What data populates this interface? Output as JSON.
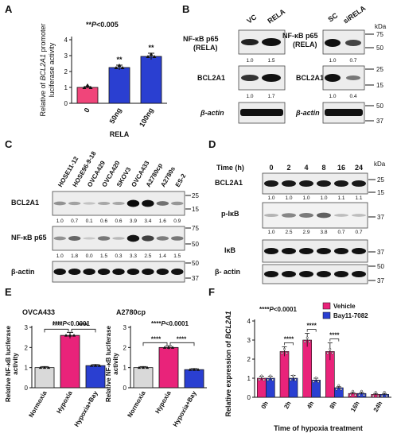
{
  "panels": {
    "A": {
      "label": "A",
      "ylabel_pre": "Relative of ",
      "ylabel_gene": "BCL2A1",
      "ylabel_post": " promoter",
      "ylabel2": "luciferase activity",
      "sig_prefix": "**",
      "sig_p": "P",
      "sig_rest": "<0.005",
      "xlabel": "RELA",
      "chart_data": {
        "type": "bar",
        "categories": [
          "0",
          "50ng",
          "100ng"
        ],
        "values": [
          1.0,
          2.25,
          2.95
        ],
        "errors": [
          0.05,
          0.15,
          0.2
        ],
        "ylim": [
          0,
          4
        ],
        "yticks": [
          "0",
          "1",
          "2",
          "3",
          "4"
        ],
        "stars": [
          "",
          "**",
          "**"
        ],
        "colors": [
          "#f0457a",
          "#2a3fd1",
          "#2a3fd1"
        ]
      }
    },
    "B": {
      "label": "B",
      "left": {
        "lanes": [
          "VC",
          "RELA"
        ],
        "rows": [
          {
            "name1": "NF-κB p65",
            "name2": "(RELA)",
            "values": [
              "1.0",
              "1.5"
            ]
          },
          {
            "name1": "BCL2A1",
            "name2": "",
            "values": [
              "1.0",
              "1.7"
            ]
          },
          {
            "name1": "β-actin",
            "name2": "",
            "values": []
          }
        ]
      },
      "right": {
        "lanes": [
          "SC",
          "siRELA"
        ],
        "rows": [
          {
            "name1": "NF-κB p65",
            "name2": "(RELA)",
            "values": [
              "1.0",
              "0.7"
            ],
            "kda": [
              "75",
              "50"
            ]
          },
          {
            "name1": "BCL2A1",
            "name2": "",
            "values": [
              "1.0",
              "0.4"
            ],
            "kda": [
              "25",
              "15"
            ]
          },
          {
            "name1": "β-actin",
            "name2": "",
            "values": [],
            "kda": [
              "50",
              "37"
            ]
          }
        ]
      },
      "kda": "kDa"
    },
    "C": {
      "label": "C",
      "lanes": [
        "HOSE11-12",
        "HOSE96-9-18",
        "OVCA429",
        "OVCA420",
        "SKOV3",
        "OVCA433",
        "A2780cp",
        "A2780s",
        "ES-2"
      ],
      "rows": [
        {
          "name": "BCL2A1",
          "values": [
            "1.0",
            "0.7",
            "0.1",
            "0.6",
            "0.6",
            "3.9",
            "3.4",
            "1.6",
            "0.9"
          ],
          "kda": [
            "25",
            "15"
          ]
        },
        {
          "name": "NF-κB p65",
          "values": [
            "1.0",
            "1.8",
            "0.0",
            "1.5",
            "0.3",
            "3.3",
            "2.5",
            "1.4",
            "1.5"
          ],
          "kda": [
            "75",
            "50"
          ]
        },
        {
          "name": "β-actin",
          "values": [],
          "kda": [
            "50",
            "37"
          ]
        }
      ]
    },
    "D": {
      "label": "D",
      "time_label": "Time (h)",
      "times": [
        "0",
        "2",
        "4",
        "8",
        "16",
        "24"
      ],
      "kda": "kDa",
      "rows": [
        {
          "name": "BCL2A1",
          "values": [
            "1.0",
            "1.0",
            "1.0",
            "1.0",
            "1.1",
            "1.1"
          ],
          "kda": [
            "25",
            "15"
          ]
        },
        {
          "name": "p-IκB",
          "values": [
            "1.0",
            "2.5",
            "2.9",
            "3.8",
            "0.7",
            "0.7"
          ],
          "kda": [
            "37"
          ]
        },
        {
          "name": "IκB",
          "values": [],
          "kda": [
            "37"
          ]
        },
        {
          "name": "β- actin",
          "values": [],
          "kda": [
            "50",
            "37"
          ]
        }
      ]
    },
    "E": {
      "label": "E",
      "ylabel1": "Relative NF-κB luciferase",
      "ylabel2": "activity",
      "charts": [
        {
          "title": "OVCA433",
          "sig_prefix": "****",
          "sig_p": "P",
          "sig_rest": "<0.0001",
          "bracket": "****",
          "chart_data": {
            "type": "bar",
            "categories": [
              "Normoxia",
              "Hypoxia",
              "Hypoxia+Bay"
            ],
            "values": [
              1.0,
              2.6,
              1.1
            ],
            "errors": [
              0.05,
              0.15,
              0.05
            ],
            "ylim": [
              0,
              3
            ],
            "yticks": [
              "0",
              "1",
              "2",
              "3"
            ],
            "colors": [
              "#d9d9d9",
              "#e9237a",
              "#2a3fd1"
            ]
          }
        },
        {
          "title": "A2780cp",
          "sig_prefix": "****",
          "sig_p": "P",
          "sig_rest": "<0.0001",
          "bracket": "****",
          "chart_data": {
            "type": "bar",
            "categories": [
              "Normoxia",
              "Hypoxia",
              "Hypoxia+Bay"
            ],
            "values": [
              1.0,
              2.0,
              0.9
            ],
            "errors": [
              0.05,
              0.08,
              0.05
            ],
            "ylim": [
              0,
              3
            ],
            "yticks": [
              "0",
              "1",
              "2",
              "3"
            ],
            "colors": [
              "#d9d9d9",
              "#e9237a",
              "#2a3fd1"
            ]
          }
        }
      ]
    },
    "F": {
      "label": "F",
      "ylabel_pre": "Relative expression of ",
      "ylabel_gene": "BCL2A1",
      "sig_prefix": "****",
      "sig_p": "P",
      "sig_rest": "<0.0001",
      "xlabel": "Time of hypoxia treatment",
      "legend": [
        "Vehicle",
        "Bay11-7082"
      ],
      "chart_data": {
        "type": "bar",
        "categories": [
          "0h",
          "2h",
          "4h",
          "8h",
          "16h",
          "24h"
        ],
        "series": [
          {
            "name": "Vehicle",
            "values": [
              1.0,
              2.4,
              3.0,
              2.4,
              0.2,
              0.15
            ],
            "errors": [
              0.1,
              0.25,
              0.35,
              0.45,
              0.05,
              0.05
            ]
          },
          {
            "name": "Bay11-7082",
            "values": [
              1.0,
              1.0,
              0.9,
              0.5,
              0.2,
              0.15
            ],
            "errors": [
              0.1,
              0.15,
              0.1,
              0.05,
              0.05,
              0.05
            ]
          }
        ],
        "stars": [
          "",
          "****",
          "****",
          "****",
          "",
          ""
        ],
        "ylim": [
          0,
          4
        ],
        "yticks": [
          "0",
          "1",
          "2",
          "3",
          "4"
        ],
        "colors": [
          "#e9237a",
          "#2a3fd1"
        ]
      }
    }
  }
}
